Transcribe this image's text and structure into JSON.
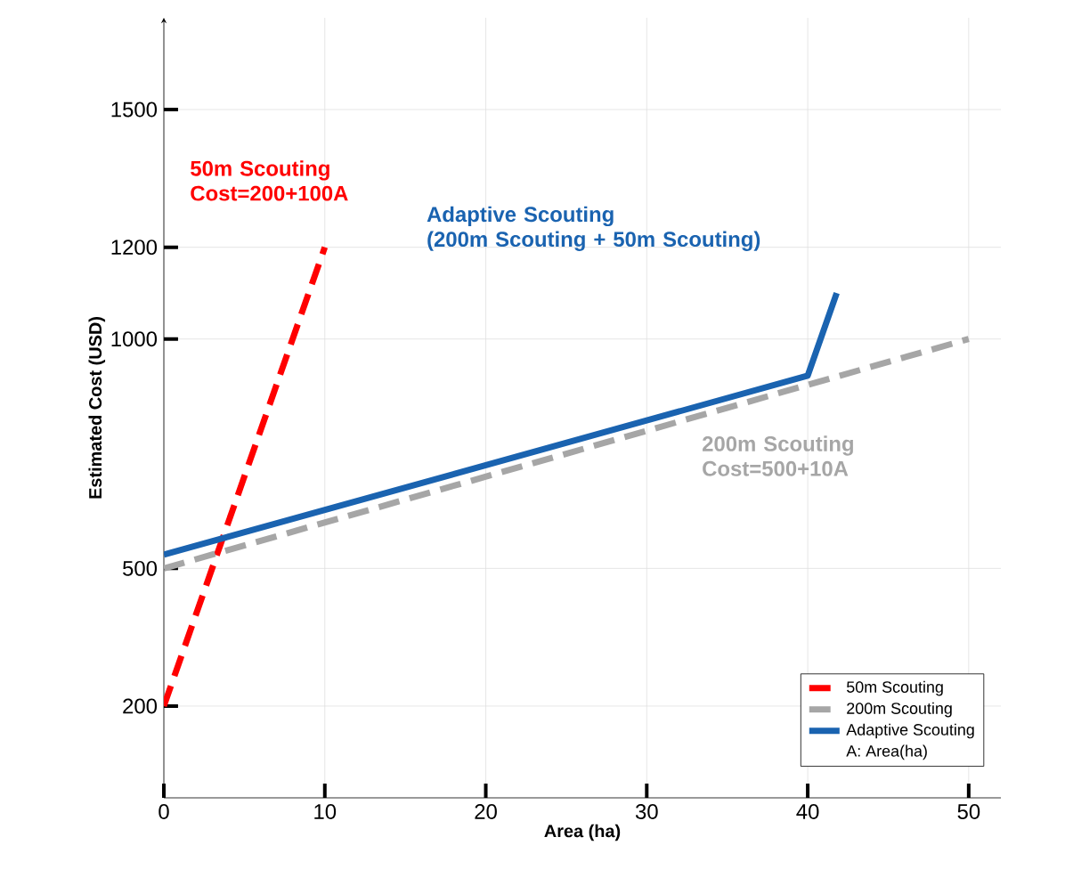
{
  "chart_data": {
    "type": "line",
    "xlabel": "Area (ha)",
    "ylabel": "Estimated Cost (USD)",
    "xlim": [
      0,
      52
    ],
    "ylim": [
      0,
      1700
    ],
    "xticks": [
      0,
      10,
      20,
      30,
      40,
      50
    ],
    "yticks": [
      200,
      500,
      1000,
      1200,
      1500
    ],
    "grid": true,
    "legend": "bottom right",
    "marker": "none",
    "series": [
      {
        "name": "50m Scouting",
        "color": "#ff0000",
        "line_style": "dashed",
        "x": [
          0,
          10
        ],
        "values": [
          200,
          1200
        ]
      },
      {
        "name": "200m Scouting",
        "color": "#a6a6a6",
        "line_style": "dashed",
        "x": [
          0,
          50
        ],
        "values": [
          500,
          1000
        ]
      },
      {
        "name": "Adaptive Scouting",
        "color": "#1a63b0",
        "line_style": "solid",
        "x": [
          0,
          40,
          41.8
        ],
        "values": [
          530,
          920,
          1100
        ]
      }
    ],
    "annotations": [
      "50m Scouting\nCost=200+100A",
      "Adaptive Scouting\n(200m Scouting + 50m Scouting)",
      "200m Scouting\nCost=500+10A",
      "A: Area(ha)"
    ]
  }
}
